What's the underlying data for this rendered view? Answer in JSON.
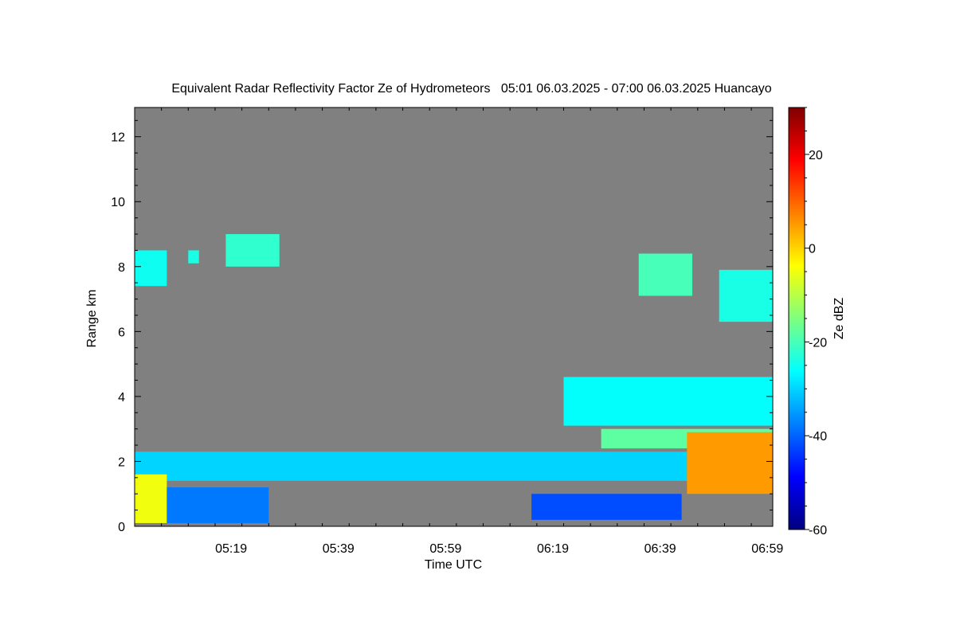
{
  "chart_data": {
    "type": "heatmap",
    "title": "Equivalent Radar Reflectivity Factor Ze of Hydrometeors   05:01 06.03.2025 - 07:00 06.03.2025 Huancayo",
    "xlabel": "Time UTC",
    "ylabel": "Range km",
    "colorbar_label": "Ze dBZ",
    "background_color": "#808080",
    "x_ticks": [
      "05:19",
      "05:39",
      "05:59",
      "06:19",
      "06:39",
      "06:59"
    ],
    "xlim_minutes_of_day": [
      301,
      420
    ],
    "x_tick_minutes_of_day": [
      319,
      339,
      359,
      379,
      399,
      419
    ],
    "y_ticks": [
      0,
      2,
      4,
      6,
      8,
      10,
      12
    ],
    "ylim": [
      0,
      12.9
    ],
    "colorbar_ticks": [
      20,
      0,
      -20,
      -40,
      -60
    ],
    "colorbar_range": [
      -60,
      30
    ],
    "colormap": [
      "#00007f",
      "#0000ff",
      "#007fff",
      "#00ffff",
      "#7fff7f",
      "#ffff00",
      "#ff7f00",
      "#ff0000",
      "#7f0000"
    ],
    "echoes": [
      {
        "t0": 301,
        "t1": 307,
        "z0": 7.4,
        "z1": 8.5,
        "dbz": -25
      },
      {
        "t0": 311,
        "t1": 313,
        "z0": 8.1,
        "z1": 8.5,
        "dbz": -24
      },
      {
        "t0": 318,
        "t1": 328,
        "z0": 8.0,
        "z1": 9.0,
        "dbz": -22
      },
      {
        "t0": 395,
        "t1": 405,
        "z0": 7.1,
        "z1": 8.4,
        "dbz": -20
      },
      {
        "t0": 410,
        "t1": 420,
        "z0": 6.3,
        "z1": 7.9,
        "dbz": -24
      },
      {
        "t0": 381,
        "t1": 420,
        "z0": 3.1,
        "z1": 4.6,
        "dbz": -26
      },
      {
        "t0": 388,
        "t1": 420,
        "z0": 2.4,
        "z1": 3.0,
        "dbz": -18
      },
      {
        "t0": 301,
        "t1": 420,
        "z0": 1.4,
        "z1": 2.3,
        "dbz": -30
      },
      {
        "t0": 404,
        "t1": 420,
        "z0": 1.0,
        "z1": 2.9,
        "dbz": 5
      },
      {
        "t0": 301,
        "t1": 307,
        "z0": 0.1,
        "z1": 1.6,
        "dbz": -5
      },
      {
        "t0": 307,
        "t1": 326,
        "z0": 0.1,
        "z1": 1.2,
        "dbz": -38
      },
      {
        "t0": 375,
        "t1": 403,
        "z0": 0.2,
        "z1": 1.0,
        "dbz": -42
      }
    ]
  }
}
